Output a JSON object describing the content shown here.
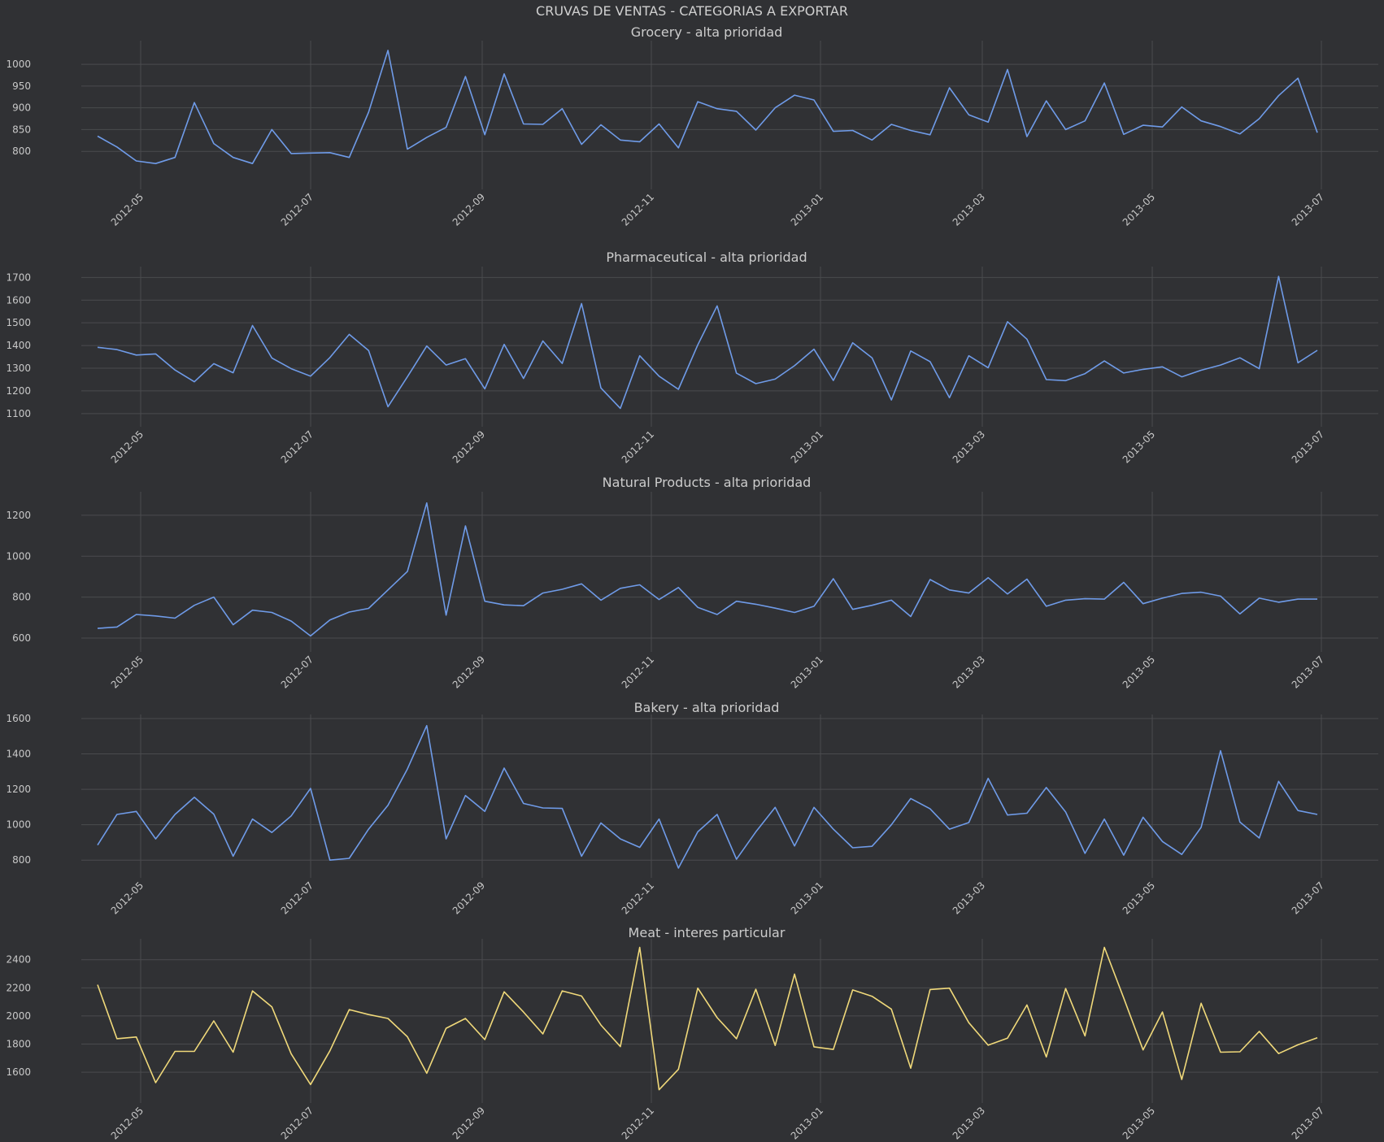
{
  "suptitle": "CRUVAS DE VENTAS - CATEGORIAS A EXPORTAR",
  "colors": {
    "background": "#303134",
    "grid": "#4a4b4e",
    "text": "#cccccc",
    "blue": "#6f9be8",
    "yellow": "#f0d97a"
  },
  "chart_data": [
    {
      "type": "line",
      "title": "Grocery - alta prioridad",
      "color": "#6f9be8",
      "x_ticks": [
        "2012-05",
        "2012-07",
        "2012-09",
        "2012-11",
        "2013-01",
        "2013-03",
        "2013-05",
        "2013-07"
      ],
      "y_ticks": [
        800,
        850,
        900,
        950,
        1000
      ],
      "ylim": [
        735,
        1045
      ],
      "grid": true,
      "values": [
        835,
        810,
        778,
        772,
        786,
        912,
        818,
        786,
        772,
        850,
        795,
        796,
        797,
        786,
        890,
        1032,
        805,
        832,
        855,
        972,
        838,
        978,
        863,
        862,
        898,
        816,
        861,
        826,
        822,
        863,
        808,
        914,
        898,
        892,
        849,
        900,
        929,
        918,
        846,
        848,
        826,
        862,
        848,
        838,
        946,
        884,
        867,
        988,
        834,
        916,
        850,
        870,
        957,
        839,
        860,
        856,
        902,
        870,
        857,
        840,
        875,
        928,
        968,
        843
      ]
    },
    {
      "type": "line",
      "title": "Pharmaceutical - alta prioridad",
      "color": "#6f9be8",
      "x_ticks": [
        "2012-05",
        "2012-07",
        "2012-09",
        "2012-11",
        "2013-01",
        "2013-03",
        "2013-05",
        "2013-07"
      ],
      "y_ticks": [
        1100,
        1200,
        1300,
        1400,
        1500,
        1600,
        1700
      ],
      "ylim": [
        1085,
        1730
      ],
      "grid": true,
      "values": [
        1392,
        1382,
        1358,
        1363,
        1292,
        1240,
        1320,
        1280,
        1488,
        1345,
        1298,
        1265,
        1347,
        1449,
        1378,
        1130,
        1262,
        1398,
        1314,
        1342,
        1209,
        1405,
        1255,
        1420,
        1321,
        1585,
        1213,
        1123,
        1355,
        1265,
        1207,
        1403,
        1575,
        1278,
        1232,
        1252,
        1311,
        1384,
        1246,
        1412,
        1346,
        1160,
        1376,
        1329,
        1170,
        1355,
        1302,
        1505,
        1428,
        1250,
        1245,
        1276,
        1332,
        1279,
        1295,
        1306,
        1262,
        1291,
        1314,
        1346,
        1298,
        1705,
        1324,
        1379
      ]
    },
    {
      "type": "line",
      "title": "Natural Products - alta prioridad",
      "color": "#6f9be8",
      "x_ticks": [
        "2012-05",
        "2012-07",
        "2012-09",
        "2012-11",
        "2013-01",
        "2013-03",
        "2013-05",
        "2013-07"
      ],
      "y_ticks": [
        600,
        800,
        1000,
        1200
      ],
      "ylim": [
        580,
        1295
      ],
      "grid": true,
      "values": [
        647,
        654,
        715,
        708,
        697,
        760,
        800,
        665,
        736,
        725,
        683,
        610,
        688,
        727,
        745,
        835,
        925,
        1260,
        712,
        1148,
        780,
        762,
        758,
        820,
        838,
        865,
        785,
        843,
        860,
        788,
        847,
        750,
        715,
        780,
        765,
        746,
        725,
        755,
        890,
        740,
        760,
        785,
        705,
        886,
        835,
        820,
        895,
        815,
        888,
        755,
        785,
        792,
        790,
        872,
        768,
        795,
        818,
        824,
        805,
        718,
        795,
        775,
        790,
        790
      ]
    },
    {
      "type": "line",
      "title": "Bakery - alta prioridad",
      "color": "#6f9be8",
      "x_ticks": [
        "2012-05",
        "2012-07",
        "2012-09",
        "2012-11",
        "2013-01",
        "2013-03",
        "2013-05",
        "2013-07"
      ],
      "y_ticks": [
        800,
        1000,
        1200,
        1400,
        1600
      ],
      "ylim": [
        755,
        1600
      ],
      "grid": true,
      "values": [
        885,
        1058,
        1075,
        920,
        1058,
        1155,
        1060,
        822,
        1032,
        956,
        1050,
        1205,
        800,
        810,
        975,
        1110,
        1315,
        1560,
        920,
        1165,
        1075,
        1320,
        1120,
        1095,
        1092,
        822,
        1010,
        920,
        872,
        1032,
        755,
        960,
        1058,
        805,
        960,
        1098,
        880,
        1098,
        975,
        870,
        878,
        1000,
        1148,
        1090,
        975,
        1012,
        1262,
        1055,
        1065,
        1210,
        1072,
        838,
        1032,
        828,
        1042,
        905,
        832,
        985,
        1418,
        1015,
        925,
        1245,
        1080,
        1058
      ]
    },
    {
      "type": "line",
      "title": "Meat - interes particular",
      "color": "#f0d97a",
      "x_ticks": [
        "2012-05",
        "2012-07",
        "2012-09",
        "2012-11",
        "2013-01",
        "2013-03",
        "2013-05",
        "2013-07"
      ],
      "y_ticks": [
        1600,
        1800,
        2000,
        2200,
        2400
      ],
      "ylim": [
        1450,
        2520
      ],
      "grid": true,
      "values": [
        2222,
        1838,
        1850,
        1525,
        1748,
        1748,
        1965,
        1742,
        2178,
        2065,
        1730,
        1512,
        1752,
        2045,
        2010,
        1982,
        1852,
        1592,
        1912,
        1982,
        1832,
        2172,
        2028,
        1872,
        2178,
        2142,
        1935,
        1782,
        2488,
        1475,
        1620,
        2198,
        1988,
        1838,
        2190,
        1790,
        2298,
        1780,
        1762,
        2185,
        2140,
        2048,
        1628,
        2188,
        2198,
        1952,
        1792,
        1842,
        2078,
        1708,
        2195,
        1858,
        2488,
        2128,
        1758,
        2028,
        1548,
        2090,
        1742,
        1745,
        1890,
        1732,
        1795,
        1845
      ]
    }
  ]
}
